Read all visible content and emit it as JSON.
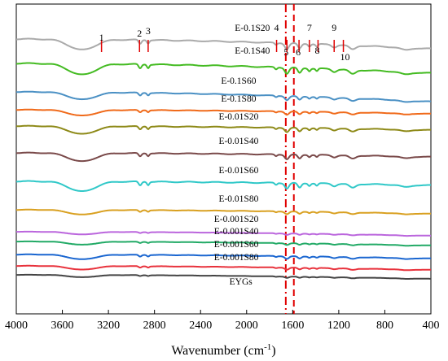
{
  "chart_data": {
    "type": "line",
    "title": "",
    "xlabel": "Wavenumber (cm",
    "xlabel_sup": "-1",
    "xlabel_end": ")",
    "ylabel": "",
    "xlim": [
      4000,
      400
    ],
    "x_reversed": true,
    "x_ticks": [
      4000,
      3600,
      3200,
      2800,
      2400,
      2000,
      1600,
      1200,
      800,
      400
    ],
    "grid": false,
    "legend": "inline labels",
    "series": [
      {
        "name": "E-0.1S20",
        "color": "#aaaaaa",
        "label_x": 1950
      },
      {
        "name": "E-0.1S40",
        "color": "#44bb22",
        "label_x": 1950
      },
      {
        "name": "E-0.1S60",
        "color": "#4a90c4",
        "label_x": 2070
      },
      {
        "name": "E-0.1S80",
        "color": "#f06a1a",
        "label_x": 2070
      },
      {
        "name": "E-0.01S20",
        "color": "#8e8a18",
        "label_x": 2070
      },
      {
        "name": "E-0.01S40",
        "color": "#7a4a4a",
        "label_x": 2070
      },
      {
        "name": "E-0.01S60",
        "color": "#30c8c8",
        "label_x": 2070
      },
      {
        "name": "E-0.01S80",
        "color": "#d9a020",
        "label_x": 2070
      },
      {
        "name": "E-0.001S20",
        "color": "#bb66dd",
        "label_x": 2090
      },
      {
        "name": "E-0.001S40",
        "color": "#22aa66",
        "label_x": 2090
      },
      {
        "name": "E-0.001S60",
        "color": "#1a66d0",
        "label_x": 2090
      },
      {
        "name": "E-0.001S80",
        "color": "#e8323c",
        "label_x": 2090
      },
      {
        "name": "EYGs",
        "color": "#444444",
        "label_x": 2050
      }
    ],
    "reference_lines": [
      {
        "x": 1660,
        "color": "#e00000",
        "style": "dash-dot"
      },
      {
        "x": 1590,
        "color": "#e00000",
        "style": "dashed"
      }
    ],
    "peak_markers": [
      {
        "label": "1",
        "x": 3260
      },
      {
        "label": "2",
        "x": 2930
      },
      {
        "label": "3",
        "x": 2855
      },
      {
        "label": "4",
        "x": 1740
      },
      {
        "label": "5",
        "x": 1650
      },
      {
        "label": "6",
        "x": 1545
      },
      {
        "label": "7",
        "x": 1455
      },
      {
        "label": "8",
        "x": 1380
      },
      {
        "label": "9",
        "x": 1240
      },
      {
        "label": "10",
        "x": 1160
      }
    ]
  }
}
